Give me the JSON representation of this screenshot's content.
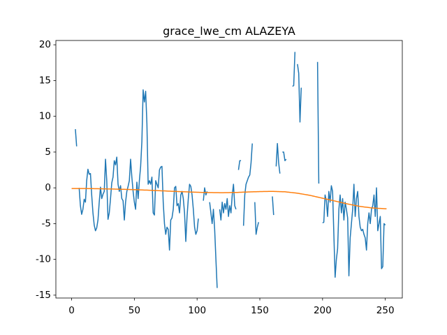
{
  "chart_data": {
    "type": "line",
    "title": "grace_lwe_cm ALAZEYA",
    "x": [
      0,
      1,
      2,
      3,
      4,
      5,
      6,
      7,
      8,
      9,
      10,
      11,
      12,
      13,
      14,
      15,
      16,
      17,
      18,
      19,
      20,
      21,
      22,
      23,
      24,
      25,
      26,
      27,
      28,
      29,
      30,
      31,
      32,
      33,
      34,
      35,
      36,
      37,
      38,
      39,
      40,
      41,
      42,
      43,
      44,
      45,
      46,
      47,
      48,
      49,
      50,
      51,
      52,
      53,
      54,
      55,
      56,
      57,
      58,
      59,
      60,
      61,
      62,
      63,
      64,
      65,
      66,
      67,
      68,
      69,
      70,
      71,
      72,
      73,
      74,
      75,
      76,
      77,
      78,
      79,
      80,
      81,
      82,
      83,
      84,
      85,
      86,
      87,
      88,
      89,
      90,
      91,
      92,
      93,
      94,
      95,
      96,
      97,
      98,
      99,
      100,
      101,
      102,
      103,
      104,
      105,
      106,
      107,
      108,
      109,
      110,
      111,
      112,
      113,
      114,
      115,
      116,
      117,
      118,
      119,
      120,
      121,
      122,
      123,
      124,
      125,
      126,
      127,
      128,
      129,
      130,
      131,
      132,
      133,
      134,
      135,
      136,
      137,
      138,
      139,
      140,
      141,
      142,
      143,
      144,
      145,
      146,
      147,
      148,
      149,
      150,
      151,
      152,
      153,
      154,
      155,
      156,
      157,
      158,
      159,
      160,
      161,
      162,
      163,
      164,
      165,
      166,
      167,
      168,
      169,
      170,
      171,
      172,
      173,
      174,
      175,
      176,
      177,
      178,
      179,
      180,
      181,
      182,
      183,
      184,
      185,
      186,
      187,
      188,
      189,
      190,
      191,
      192,
      193,
      194,
      195,
      196,
      197,
      198,
      199,
      200,
      201,
      202,
      203,
      204,
      205,
      206,
      207,
      208,
      209,
      210,
      211,
      212,
      213,
      214,
      215,
      216,
      217,
      218,
      219,
      220,
      221,
      222,
      223,
      224,
      225,
      226,
      227,
      228,
      229,
      230,
      231,
      232,
      233,
      234,
      235,
      236,
      237,
      238,
      239,
      240,
      241,
      242,
      243,
      244,
      245,
      246,
      247,
      248,
      249,
      250,
      251
    ],
    "series": [
      {
        "color": "#1f77b4",
        "values": [
          null,
          null,
          null,
          8.2,
          5.8,
          null,
          0,
          -2.5,
          -3.7,
          -3.0,
          -1.6,
          -2.0,
          1.0,
          2.6,
          1.9,
          2.0,
          -1.0,
          -3.5,
          -5.2,
          -6.0,
          -5.6,
          -4.5,
          -2.0,
          0.1,
          -1.5,
          -0.9,
          -0.5,
          4.0,
          1.0,
          -4.4,
          -3.5,
          -1.5,
          0.7,
          1.5,
          3.8,
          3.2,
          4.3,
          0.5,
          -0.5,
          0.3,
          -1.5,
          -1.8,
          -4.5,
          -2.0,
          -0.5,
          0.2,
          1.0,
          4.0,
          1.5,
          -0.5,
          -2.0,
          -3.0,
          0.8,
          -1.5,
          1.0,
          3.0,
          6.5,
          13.7,
          12.0,
          13.5,
          9.0,
          0.5,
          1.0,
          0.5,
          1.5,
          -3.5,
          -3.8,
          1.0,
          0.5,
          0.0,
          2.5,
          2.9,
          3.0,
          -2.0,
          -5.0,
          -6.5,
          -5.5,
          -5.8,
          -8.7,
          -4.5,
          -4.2,
          -3.0,
          0.0,
          0.2,
          -2.5,
          -2.2,
          -3.5,
          -1.0,
          -0.5,
          -1.5,
          -3.5,
          -7.5,
          -4.0,
          -1.5,
          0.5,
          0.2,
          -1.0,
          -3.0,
          -5.5,
          -6.5,
          -6.0,
          -4.3,
          null,
          null,
          null,
          -1.8,
          0.0,
          -1.0,
          -0.5,
          null,
          -2.0,
          -3.5,
          -5.0,
          -3.0,
          -5.8,
          -10.0,
          -14.0,
          null,
          -3.0,
          -4.5,
          -2.0,
          -3.5,
          -2.2,
          -3.0,
          -1.5,
          -4.0,
          -2.5,
          -3.5,
          -1.0,
          0.5,
          -2.5,
          -3.0,
          null,
          2.5,
          3.8,
          3.8,
          null,
          -5.3,
          -1.0,
          0.5,
          1.0,
          1.5,
          1.8,
          3.5,
          6.2,
          null,
          -2.0,
          -6.5,
          -5.5,
          -4.8,
          null,
          null,
          null,
          null,
          null,
          null,
          null,
          null,
          null,
          null,
          -1.2,
          -3.8,
          null,
          3.0,
          6.2,
          3.5,
          2.0,
          null,
          5.0,
          5.0,
          3.8,
          4.0,
          null,
          null,
          null,
          null,
          14.2,
          14.3,
          19.0,
          null,
          17.3,
          16.0,
          9.2,
          14.0,
          null,
          null,
          null,
          null,
          null,
          null,
          null,
          null,
          null,
          null,
          null,
          null,
          17.6,
          0.6,
          null,
          null,
          -4.9,
          -4.8,
          -1.0,
          -1.8,
          -4.0,
          -0.5,
          -2.0,
          0.3,
          -0.5,
          -6.5,
          -12.5,
          -10.0,
          -8.5,
          -3.0,
          -1.0,
          -3.5,
          -1.5,
          -4.5,
          -2.0,
          -3.0,
          -4.2,
          -12.3,
          -7.0,
          -5.0,
          -3.0,
          0.5,
          -4.0,
          -1.5,
          -0.5,
          -4.0,
          -5.5,
          -6.0,
          -5.8,
          -6.5,
          -7.0,
          -8.7,
          -5.0,
          -3.5,
          -5.0,
          -3.0,
          -2.5,
          -1.0,
          -4.0,
          0.0,
          -6.0,
          -5.0,
          -4.0,
          -11.3,
          -11.0,
          -5.0,
          -5.2,
          null
        ]
      },
      {
        "color": "#ff7f0e",
        "values": [
          -0.1,
          -0.1,
          -0.1,
          -0.1,
          -0.1,
          -0.1,
          -0.1,
          -0.1,
          -0.1,
          -0.1,
          -0.1,
          -0.1,
          -0.1,
          -0.11,
          -0.11,
          -0.11,
          -0.11,
          -0.11,
          -0.12,
          -0.12,
          -0.12,
          -0.12,
          -0.13,
          -0.13,
          -0.13,
          -0.14,
          -0.14,
          -0.14,
          -0.15,
          -0.15,
          -0.15,
          -0.16,
          -0.16,
          -0.17,
          -0.17,
          -0.18,
          -0.18,
          -0.19,
          -0.19,
          -0.2,
          -0.2,
          -0.21,
          -0.21,
          -0.22,
          -0.22,
          -0.23,
          -0.23,
          -0.24,
          -0.24,
          -0.25,
          -0.25,
          -0.26,
          -0.26,
          -0.27,
          -0.28,
          -0.29,
          -0.29,
          -0.3,
          -0.31,
          -0.31,
          -0.32,
          -0.33,
          -0.34,
          -0.34,
          -0.35,
          -0.36,
          -0.37,
          -0.38,
          -0.38,
          -0.39,
          -0.4,
          -0.41,
          -0.42,
          -0.42,
          -0.43,
          -0.44,
          -0.45,
          -0.46,
          -0.46,
          -0.47,
          -0.48,
          -0.49,
          -0.49,
          -0.5,
          -0.51,
          -0.52,
          -0.52,
          -0.53,
          -0.54,
          -0.54,
          -0.55,
          -0.56,
          -0.56,
          -0.57,
          -0.58,
          -0.59,
          -0.59,
          -0.6,
          -0.61,
          -0.61,
          -0.62,
          -0.62,
          -0.63,
          -0.63,
          -0.64,
          -0.64,
          -0.64,
          -0.65,
          -0.65,
          -0.66,
          -0.66,
          -0.66,
          -0.66,
          -0.67,
          -0.67,
          -0.67,
          -0.67,
          -0.67,
          -0.68,
          -0.68,
          -0.68,
          -0.68,
          -0.67,
          -0.67,
          -0.67,
          -0.67,
          -0.66,
          -0.66,
          -0.65,
          -0.65,
          -0.65,
          -0.64,
          -0.64,
          -0.63,
          -0.62,
          -0.62,
          -0.61,
          -0.6,
          -0.59,
          -0.59,
          -0.58,
          -0.57,
          -0.57,
          -0.56,
          -0.56,
          -0.55,
          -0.54,
          -0.54,
          -0.53,
          -0.53,
          -0.52,
          -0.52,
          -0.52,
          -0.51,
          -0.51,
          -0.51,
          -0.51,
          -0.5,
          -0.5,
          -0.5,
          -0.5,
          -0.5,
          -0.51,
          -0.51,
          -0.52,
          -0.52,
          -0.53,
          -0.53,
          -0.54,
          -0.54,
          -0.55,
          -0.57,
          -0.59,
          -0.61,
          -0.63,
          -0.65,
          -0.67,
          -0.69,
          -0.71,
          -0.73,
          -0.75,
          -0.78,
          -0.81,
          -0.84,
          -0.87,
          -0.9,
          -0.93,
          -0.96,
          -0.99,
          -1.02,
          -1.05,
          -1.09,
          -1.13,
          -1.17,
          -1.21,
          -1.25,
          -1.29,
          -1.33,
          -1.37,
          -1.41,
          -1.45,
          -1.49,
          -1.53,
          -1.57,
          -1.61,
          -1.65,
          -1.69,
          -1.73,
          -1.77,
          -1.81,
          -1.85,
          -1.89,
          -1.93,
          -1.97,
          -2.01,
          -2.05,
          -2.09,
          -2.13,
          -2.17,
          -2.21,
          -2.25,
          -2.29,
          -2.32,
          -2.36,
          -2.39,
          -2.43,
          -2.46,
          -2.5,
          -2.53,
          -2.57,
          -2.6,
          -2.62,
          -2.64,
          -2.67,
          -2.69,
          -2.71,
          -2.73,
          -2.75,
          -2.78,
          -2.8,
          -2.82,
          -2.83,
          -2.84,
          -2.85,
          -2.86,
          -2.87,
          -2.88,
          -2.89,
          -2.9,
          -2.91,
          -2.92,
          -2.92
        ]
      }
    ],
    "xlim": [
      -12.55,
      263.55
    ],
    "xticks": [
      0,
      50,
      100,
      150,
      200,
      250
    ],
    "ylim": [
      -15.4,
      20.6
    ],
    "yticks": [
      -15,
      -10,
      -5,
      0,
      5,
      10,
      15,
      20
    ]
  }
}
